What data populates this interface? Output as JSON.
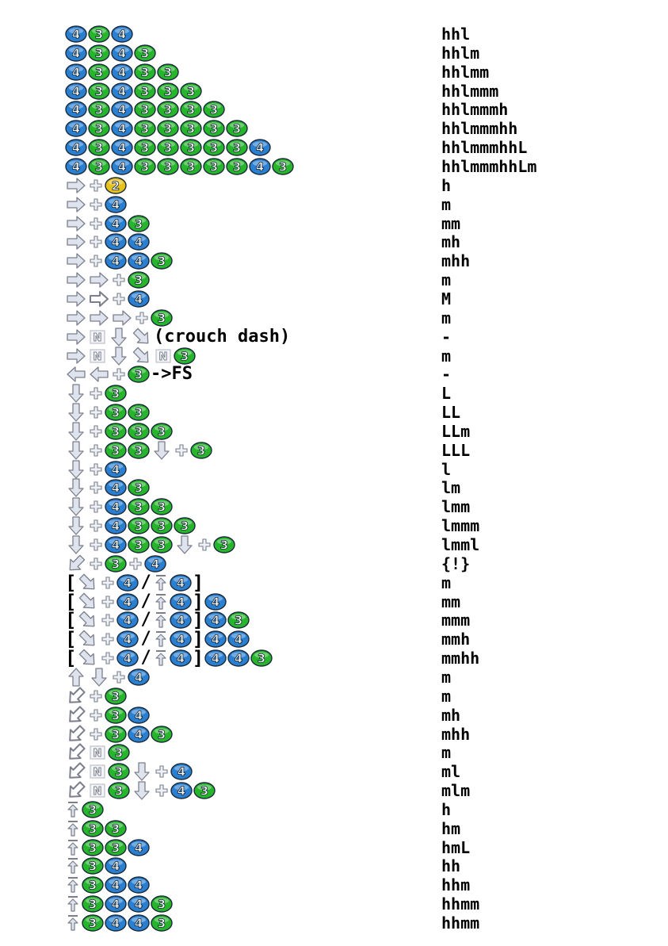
{
  "colors": {
    "btn4": "#2a7fd0",
    "btn3": "#27b52c",
    "btn2": "#e6c21c",
    "arrow": "#dfe3ee",
    "arrowStroke": "#7b7f8c"
  },
  "rows": [
    {
      "combo": [
        "4",
        "3",
        "4"
      ],
      "notation": "hhl"
    },
    {
      "combo": [
        "4",
        "3",
        "4",
        "3"
      ],
      "notation": "hhlm"
    },
    {
      "combo": [
        "4",
        "3",
        "4",
        "3",
        "3"
      ],
      "notation": "hhlmm"
    },
    {
      "combo": [
        "4",
        "3",
        "4",
        "3",
        "3",
        "3"
      ],
      "notation": "hhlmmm"
    },
    {
      "combo": [
        "4",
        "3",
        "4",
        "3",
        "3",
        "3",
        "3"
      ],
      "notation": "hhlmmmh"
    },
    {
      "combo": [
        "4",
        "3",
        "4",
        "3",
        "3",
        "3",
        "3",
        "3"
      ],
      "notation": "hhlmmmhh"
    },
    {
      "combo": [
        "4",
        "3",
        "4",
        "3",
        "3",
        "3",
        "3",
        "3",
        "4"
      ],
      "notation": "hhlmmmhhL"
    },
    {
      "combo": [
        "4",
        "3",
        "4",
        "3",
        "3",
        "3",
        "3",
        "3",
        "4",
        "3"
      ],
      "notation": "hhlmmmhhLm"
    },
    {
      "combo": [
        "R",
        "+",
        "2"
      ],
      "notation": "h"
    },
    {
      "combo": [
        "R",
        "+",
        "4"
      ],
      "notation": "m"
    },
    {
      "combo": [
        "R",
        "+",
        "4",
        "3"
      ],
      "notation": "mm"
    },
    {
      "combo": [
        "R",
        "+",
        "4",
        "4"
      ],
      "notation": "mh"
    },
    {
      "combo": [
        "R",
        "+",
        "4",
        "4",
        "3"
      ],
      "notation": "mhh"
    },
    {
      "combo": [
        "R",
        "R",
        "+",
        "3"
      ],
      "notation": "m"
    },
    {
      "combo": [
        "R",
        "RH",
        "+",
        "4"
      ],
      "notation": "M"
    },
    {
      "combo": [
        "R",
        "R",
        "R",
        "+",
        "3"
      ],
      "notation": "m"
    },
    {
      "combo": [
        "R",
        "N",
        "D",
        "DR"
      ],
      "text": "(crouch dash)",
      "notation": "-"
    },
    {
      "combo": [
        "R",
        "N",
        "D",
        "DR",
        "N",
        "3"
      ],
      "notation": "m"
    },
    {
      "combo": [
        "L",
        "L",
        "+",
        "3"
      ],
      "text": "->FS",
      "notation": "-"
    },
    {
      "combo": [
        "D",
        "+",
        "3"
      ],
      "notation": "L"
    },
    {
      "combo": [
        "D",
        "+",
        "3",
        "3"
      ],
      "notation": "LL"
    },
    {
      "combo": [
        "D",
        "+",
        "3",
        "3",
        "3"
      ],
      "notation": "LLm"
    },
    {
      "combo": [
        "D",
        "+",
        "3",
        "3",
        "D",
        "+",
        "3"
      ],
      "notation": "LLL"
    },
    {
      "combo": [
        "D",
        "+",
        "4"
      ],
      "notation": "l"
    },
    {
      "combo": [
        "D",
        "+",
        "4",
        "3"
      ],
      "notation": "lm"
    },
    {
      "combo": [
        "D",
        "+",
        "4",
        "3",
        "3"
      ],
      "notation": "lmm"
    },
    {
      "combo": [
        "D",
        "+",
        "4",
        "3",
        "3",
        "3"
      ],
      "notation": "lmmm"
    },
    {
      "combo": [
        "D",
        "+",
        "4",
        "3",
        "3",
        "D",
        "+",
        "3"
      ],
      "notation": "lmml"
    },
    {
      "combo": [
        "DL",
        "+",
        "3",
        "+",
        "4"
      ],
      "notation": "{!}"
    },
    {
      "combo": [
        "[",
        "DR",
        "+",
        "4",
        "/",
        "J",
        "4",
        "]"
      ],
      "notation": "m"
    },
    {
      "combo": [
        "[",
        "DR",
        "+",
        "4",
        "/",
        "J",
        "4",
        "]",
        "4"
      ],
      "notation": "mm"
    },
    {
      "combo": [
        "[",
        "DR",
        "+",
        "4",
        "/",
        "J",
        "4",
        "]",
        "4",
        "3"
      ],
      "notation": "mmm"
    },
    {
      "combo": [
        "[",
        "DR",
        "+",
        "4",
        "/",
        "J",
        "4",
        "]",
        "4",
        "4"
      ],
      "notation": "mmh"
    },
    {
      "combo": [
        "[",
        "DR",
        "+",
        "4",
        "/",
        "J",
        "4",
        "]",
        "4",
        "4",
        "3"
      ],
      "notation": "mmhh"
    },
    {
      "combo": [
        "U",
        "D",
        "+",
        "4"
      ],
      "notation": "m"
    },
    {
      "combo": [
        "DLB",
        "+",
        "3"
      ],
      "notation": "m"
    },
    {
      "combo": [
        "DLB",
        "+",
        "3",
        "4"
      ],
      "notation": "mh"
    },
    {
      "combo": [
        "DLB",
        "+",
        "3",
        "4",
        "3"
      ],
      "notation": "mhh"
    },
    {
      "combo": [
        "DLB",
        "N",
        "3"
      ],
      "notation": "m"
    },
    {
      "combo": [
        "DLB",
        "N",
        "3",
        "D",
        "+",
        "4"
      ],
      "notation": "ml"
    },
    {
      "combo": [
        "DLB",
        "N",
        "3",
        "D",
        "+",
        "4",
        "3"
      ],
      "notation": "mlm"
    },
    {
      "combo": [
        "J",
        "3"
      ],
      "notation": "h"
    },
    {
      "combo": [
        "J",
        "3",
        "3"
      ],
      "notation": "hm"
    },
    {
      "combo": [
        "J",
        "3",
        "3",
        "4"
      ],
      "notation": "hmL"
    },
    {
      "combo": [
        "J",
        "3",
        "4"
      ],
      "notation": "hh"
    },
    {
      "combo": [
        "J",
        "3",
        "4",
        "4"
      ],
      "notation": "hhm"
    },
    {
      "combo": [
        "J",
        "3",
        "4",
        "4",
        "3"
      ],
      "notation": "hhmm"
    },
    {
      "combo": [
        "J",
        "3",
        "4",
        "4",
        "3"
      ],
      "notation": "hhmm"
    }
  ]
}
